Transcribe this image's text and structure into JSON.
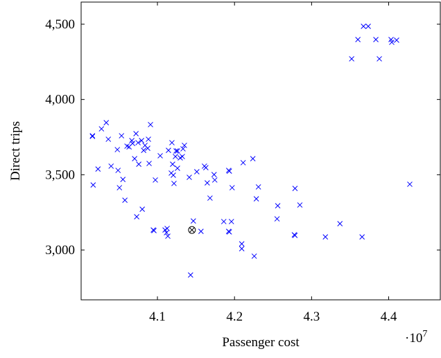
{
  "chart_data": {
    "type": "scatter",
    "xlabel": "Passenger cost",
    "ylabel": "Direct trips",
    "x_scale_base": "·10",
    "x_scale_exponent": "7",
    "xlim": [
      4.001,
      4.467
    ],
    "ylim": [
      2669,
      4647
    ],
    "xticks": [
      4.1,
      4.2,
      4.3,
      4.4
    ],
    "yticks": [
      {
        "value": 3000,
        "label": "3,000"
      },
      {
        "value": 3500,
        "label": "3,500"
      },
      {
        "value": 4000,
        "label": "4,000"
      },
      {
        "value": 4500,
        "label": "4,500"
      }
    ],
    "series": [
      {
        "color": "#0000ff",
        "marker": "x",
        "x": [
          4.0157,
          4.0157,
          4.0166,
          4.0229,
          4.0274,
          4.0336,
          4.0363,
          4.0399,
          4.048,
          4.0489,
          4.0507,
          4.0534,
          4.0552,
          4.0578,
          4.0605,
          4.0632,
          4.0668,
          4.0677,
          4.0704,
          4.0722,
          4.0749,
          4.0758,
          4.0794,
          4.0821,
          4.0839,
          4.0874,
          4.0883,
          4.0892,
          4.091,
          4.0803,
          4.0731,
          4.0946,
          4.0955,
          4.0973,
          4.1036,
          4.1099,
          4.1135,
          4.1117,
          4.1126,
          4.1143,
          4.1179,
          4.1188,
          4.1197,
          4.1206,
          4.1215,
          4.1242,
          4.126,
          4.1233,
          4.126,
          4.1296,
          4.1332,
          4.135,
          4.1323,
          4.1413,
          4.1466,
          4.143,
          4.1511,
          4.1565,
          4.161,
          4.1646,
          4.1682,
          4.1735,
          4.1744,
          4.1628,
          4.1861,
          4.1924,
          4.1933,
          4.1969,
          4.1924,
          4.1933,
          4.196,
          4.2094,
          4.2094,
          4.2112,
          4.2256,
          4.2238,
          4.2283,
          4.231,
          4.2552,
          4.2561,
          4.2776,
          4.2785,
          4.2785,
          4.2848,
          4.3179,
          4.3368,
          4.3655,
          4.352,
          4.3601,
          4.3673,
          4.3735,
          4.3834,
          4.3879,
          4.4031,
          4.404,
          4.4103,
          4.4274
        ],
        "y": [
          3759,
          3755,
          3432,
          3538,
          3805,
          3846,
          3736,
          3557,
          3667,
          3529,
          3414,
          3759,
          3469,
          3331,
          3690,
          3685,
          3727,
          3708,
          3607,
          3773,
          3713,
          3570,
          3727,
          3662,
          3695,
          3676,
          3736,
          3575,
          3833,
          3271,
          3221,
          3133,
          3129,
          3465,
          3626,
          3133,
          3092,
          3115,
          3143,
          3662,
          3511,
          3713,
          3570,
          3497,
          3442,
          3658,
          3658,
          3621,
          3543,
          3612,
          3672,
          3695,
          3621,
          3483,
          3193,
          2834,
          3520,
          3124,
          3557,
          3446,
          3345,
          3501,
          3465,
          3547,
          3189,
          3529,
          3524,
          3414,
          3124,
          3120,
          3189,
          3041,
          3009,
          3580,
          2959,
          3607,
          3340,
          3419,
          3207,
          3294,
          3101,
          3097,
          3409,
          3299,
          3087,
          3175,
          3087,
          4270,
          4398,
          4486,
          4486,
          4398,
          4270,
          4398,
          4380,
          4394,
          3437
        ]
      },
      {
        "color": "#000000",
        "marker": "otimes",
        "x": [
          4.1448
        ],
        "y": [
          3133
        ]
      }
    ]
  }
}
